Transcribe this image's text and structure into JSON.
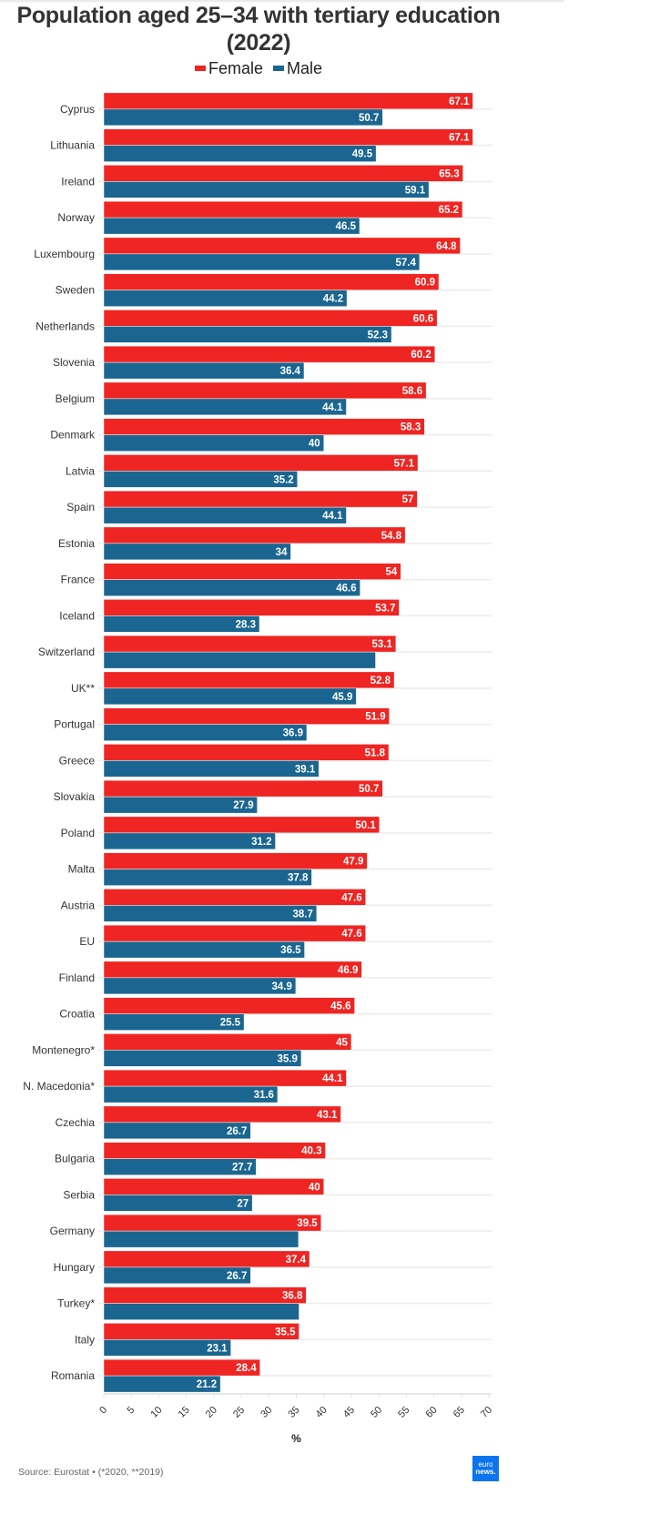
{
  "chart_data": {
    "type": "bar",
    "orientation": "horizontal",
    "title": "Population aged 25–34 with tertiary education (2022)",
    "xlabel": "%",
    "ylabel": "",
    "xlim": [
      0,
      70
    ],
    "ticks": [
      "0",
      "5",
      "10",
      "15",
      "20",
      "25",
      "30",
      "35",
      "40",
      "45",
      "50",
      "55",
      "60",
      "65",
      "70"
    ],
    "legend_position": "top-center",
    "categories": [
      "Cyprus",
      "Lithuania",
      "Ireland",
      "Norway",
      "Luxembourg",
      "Sweden",
      "Netherlands",
      "Slovenia",
      "Belgium",
      "Denmark",
      "Latvia",
      "Spain",
      "Estonia",
      "France",
      "Iceland",
      "Switzerland",
      "UK**",
      "Portugal",
      "Greece",
      "Slovakia",
      "Poland",
      "Malta",
      "Austria",
      "EU",
      "Finland",
      "Croatia",
      "Montenegro*",
      "N. Macedonia*",
      "Czechia",
      "Bulgaria",
      "Serbia",
      "Germany",
      "Hungary",
      "Turkey*",
      "Italy",
      "Romania"
    ],
    "series": [
      {
        "name": "Female",
        "color": "#ee2522",
        "values": [
          67.1,
          67.1,
          65.3,
          65.2,
          64.8,
          60.9,
          60.6,
          60.2,
          58.6,
          58.3,
          57.1,
          57,
          54.8,
          54,
          53.7,
          53.1,
          52.8,
          51.9,
          51.8,
          50.7,
          50.1,
          47.9,
          47.6,
          47.6,
          46.9,
          45.6,
          45,
          44.1,
          43.1,
          40.3,
          40,
          39.5,
          37.4,
          36.8,
          35.5,
          28.4
        ],
        "labels": [
          "67.1",
          "67.1",
          "65.3",
          "65.2",
          "64.8",
          "60.9",
          "60.6",
          "60.2",
          "58.6",
          "58.3",
          "57.1",
          "57",
          "54.8",
          "54",
          "53.7",
          "53.1",
          "52.8",
          "51.9",
          "51.8",
          "50.7",
          "50.1",
          "47.9",
          "47.6",
          "47.6",
          "46.9",
          "45.6",
          "45",
          "44.1",
          "43.1",
          "40.3",
          "40",
          "39.5",
          "37.4",
          "36.8",
          "35.5",
          "28.4"
        ]
      },
      {
        "name": "Male",
        "color": "#1b6690",
        "values": [
          50.7,
          49.5,
          59.1,
          46.5,
          57.4,
          44.2,
          52.3,
          36.4,
          44.1,
          40,
          35.2,
          44.1,
          34,
          46.6,
          28.3,
          49.4,
          45.9,
          36.9,
          39.1,
          27.9,
          31.2,
          37.8,
          38.7,
          36.5,
          34.9,
          25.5,
          35.9,
          31.6,
          26.7,
          27.7,
          27,
          35.4,
          26.7,
          35.5,
          23.1,
          21.2
        ],
        "labels": [
          "50.7",
          "49.5",
          "59.1",
          "46.5",
          "57.4",
          "44.2",
          "52.3",
          "36.4",
          "44.1",
          "40",
          "35.2",
          "44.1",
          "34",
          "46.6",
          "28.3",
          null,
          "45.9",
          "36.9",
          "39.1",
          "27.9",
          "31.2",
          "37.8",
          "38.7",
          "36.5",
          "34.9",
          "25.5",
          "35.9",
          "31.6",
          "26.7",
          "27.7",
          "27",
          null,
          "26.7",
          null,
          "23.1",
          "21.2"
        ]
      }
    ]
  },
  "legend": {
    "female": "Female",
    "male": "Male"
  },
  "source": "Source: Eurostat • (*2020, **2019)",
  "logo": {
    "line1": "euro",
    "line2": "news."
  }
}
